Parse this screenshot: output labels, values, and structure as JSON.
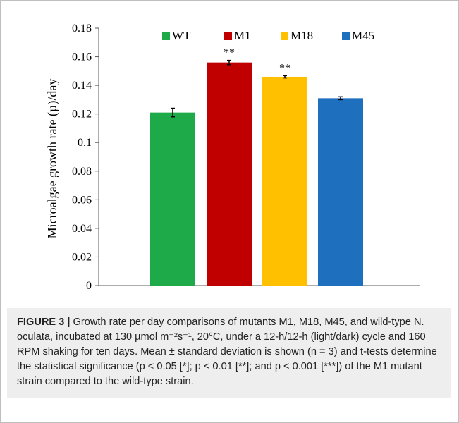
{
  "chart_data": {
    "type": "bar",
    "title": "",
    "xlabel": "",
    "ylabel": "Microalgae growth rate (µ)/day",
    "ylim": [
      0,
      0.18
    ],
    "yticks": [
      "0",
      "0.02",
      "0.04",
      "0.06",
      "0.08",
      "0.1",
      "0.12",
      "0.14",
      "0.16",
      "0.18"
    ],
    "grid": false,
    "legend_position": "top",
    "categories": [
      "WT",
      "M1",
      "M18",
      "M45"
    ],
    "values": [
      0.121,
      0.156,
      0.146,
      0.131
    ],
    "errors": [
      0.003,
      0.0015,
      0.0008,
      0.001
    ],
    "significance": [
      "",
      "**",
      "**",
      ""
    ],
    "colors": [
      "#1faa4a",
      "#c00000",
      "#ffc000",
      "#1f6fbf"
    ]
  },
  "caption": {
    "label": "FIGURE 3 |",
    "text": "Growth rate per day comparisons of mutants M1, M18, M45, and wild-type N. oculata, incubated at 130 µmol m⁻²s⁻¹, 20°C, under a 12-h/12-h (light/dark) cycle and 160 RPM shaking for ten days. Mean ± standard deviation is shown (n = 3) and t-tests determine the statistical significance (p < 0.05 [*]; p < 0.01 [**]; and p < 0.001 [***]) of the M1 mutant strain compared to the wild-type strain."
  }
}
